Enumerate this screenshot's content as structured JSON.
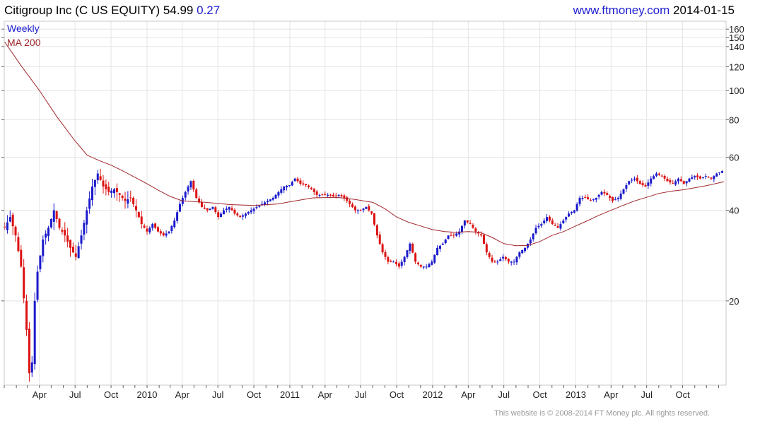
{
  "header": {
    "title": "Citigroup Inc (C US EQUITY) 54.99",
    "change": "0.27",
    "url": "www.ftmoney.com",
    "date": "2014-01-15"
  },
  "footer": {
    "copyright": "This website is © 2008-2014 FT Money plc. All rights reserved."
  },
  "colors": {
    "up": "#1a1acc",
    "down": "#dd1111",
    "ma": "#a0262b",
    "grid": "#e4e4e4",
    "accent": "#1f1fd0"
  },
  "chart_data": {
    "type": "candlestick",
    "frequency": "Weekly",
    "scale": "log",
    "ylim": [
      10.5,
      170
    ],
    "xlim": [
      "2009-01-01",
      "2014-01-20"
    ],
    "grid": true,
    "legend_position": "top-left",
    "legend": [
      {
        "name": "Weekly",
        "color": "#1a1acc"
      },
      {
        "name": "MA 200",
        "color": "#a0262b"
      }
    ],
    "y_ticks": [
      {
        "value": 160,
        "label": "160"
      },
      {
        "value": 150,
        "label": "150"
      },
      {
        "value": 140,
        "label": "140"
      },
      {
        "value": 120,
        "label": "120"
      },
      {
        "value": 100,
        "label": "100"
      },
      {
        "value": 80,
        "label": "80"
      },
      {
        "value": 60,
        "label": "60"
      },
      {
        "value": 40,
        "label": "40"
      },
      {
        "value": 20,
        "label": "20"
      }
    ],
    "x_ticks": [
      {
        "date": "2009-04-01",
        "label": "Apr"
      },
      {
        "date": "2009-07-01",
        "label": "Jul"
      },
      {
        "date": "2009-10-01",
        "label": "Oct"
      },
      {
        "date": "2010-01-01",
        "label": "2010"
      },
      {
        "date": "2010-04-01",
        "label": "Apr"
      },
      {
        "date": "2010-07-01",
        "label": "Jul"
      },
      {
        "date": "2010-10-01",
        "label": "Oct"
      },
      {
        "date": "2011-01-01",
        "label": "2011"
      },
      {
        "date": "2011-04-01",
        "label": "Apr"
      },
      {
        "date": "2011-07-01",
        "label": "Jul"
      },
      {
        "date": "2011-10-01",
        "label": "Oct"
      },
      {
        "date": "2012-01-01",
        "label": "2012"
      },
      {
        "date": "2012-04-01",
        "label": "Apr"
      },
      {
        "date": "2012-07-01",
        "label": "Jul"
      },
      {
        "date": "2012-10-01",
        "label": "Oct"
      },
      {
        "date": "2013-01-01",
        "label": "2013"
      },
      {
        "date": "2013-04-01",
        "label": "Apr"
      },
      {
        "date": "2013-07-01",
        "label": "Jul"
      },
      {
        "date": "2013-10-01",
        "label": "Oct"
      }
    ],
    "close_path": [
      [
        "2009-01-02",
        35
      ],
      [
        "2009-01-16",
        38
      ],
      [
        "2009-01-30",
        33
      ],
      [
        "2009-02-13",
        26
      ],
      [
        "2009-02-27",
        16
      ],
      [
        "2009-03-06",
        11.5
      ],
      [
        "2009-03-13",
        12.5
      ],
      [
        "2009-03-20",
        20
      ],
      [
        "2009-03-27",
        25
      ],
      [
        "2009-04-10",
        32
      ],
      [
        "2009-04-24",
        35
      ],
      [
        "2009-05-08",
        40
      ],
      [
        "2009-05-22",
        35
      ],
      [
        "2009-06-05",
        33
      ],
      [
        "2009-06-19",
        30
      ],
      [
        "2009-07-03",
        28
      ],
      [
        "2009-07-17",
        33
      ],
      [
        "2009-07-31",
        40
      ],
      [
        "2009-08-14",
        48
      ],
      [
        "2009-08-28",
        53
      ],
      [
        "2009-09-11",
        48
      ],
      [
        "2009-09-25",
        46
      ],
      [
        "2009-10-09",
        47
      ],
      [
        "2009-10-23",
        45
      ],
      [
        "2009-11-06",
        43
      ],
      [
        "2009-11-20",
        44
      ],
      [
        "2009-12-04",
        40
      ],
      [
        "2009-12-18",
        36
      ],
      [
        "2010-01-01",
        34
      ],
      [
        "2010-01-15",
        36
      ],
      [
        "2010-01-29",
        34
      ],
      [
        "2010-02-12",
        33
      ],
      [
        "2010-02-26",
        34
      ],
      [
        "2010-03-12",
        37
      ],
      [
        "2010-03-26",
        42
      ],
      [
        "2010-04-09",
        46
      ],
      [
        "2010-04-23",
        50
      ],
      [
        "2010-05-07",
        44
      ],
      [
        "2010-05-21",
        41
      ],
      [
        "2010-06-04",
        40
      ],
      [
        "2010-06-18",
        41
      ],
      [
        "2010-07-02",
        38
      ],
      [
        "2010-07-16",
        40
      ],
      [
        "2010-07-30",
        41
      ],
      [
        "2010-08-13",
        39
      ],
      [
        "2010-08-27",
        38
      ],
      [
        "2010-09-10",
        39
      ],
      [
        "2010-09-24",
        40
      ],
      [
        "2010-10-08",
        41
      ],
      [
        "2010-10-22",
        42
      ],
      [
        "2010-11-05",
        43
      ],
      [
        "2010-11-19",
        44
      ],
      [
        "2010-12-03",
        46
      ],
      [
        "2010-12-17",
        48
      ],
      [
        "2010-12-31",
        48.5
      ],
      [
        "2011-01-14",
        51
      ],
      [
        "2011-01-28",
        49
      ],
      [
        "2011-02-11",
        48.5
      ],
      [
        "2011-02-25",
        47
      ],
      [
        "2011-03-11",
        45
      ],
      [
        "2011-03-25",
        45
      ],
      [
        "2011-04-08",
        45
      ],
      [
        "2011-04-22",
        44.5
      ],
      [
        "2011-05-06",
        45
      ],
      [
        "2011-05-20",
        44
      ],
      [
        "2011-06-03",
        42
      ],
      [
        "2011-06-17",
        40
      ],
      [
        "2011-07-01",
        40
      ],
      [
        "2011-07-15",
        41
      ],
      [
        "2011-07-29",
        39
      ],
      [
        "2011-08-12",
        33
      ],
      [
        "2011-08-26",
        29
      ],
      [
        "2011-09-09",
        27
      ],
      [
        "2011-09-23",
        27
      ],
      [
        "2011-10-07",
        26
      ],
      [
        "2011-10-21",
        28
      ],
      [
        "2011-11-04",
        31
      ],
      [
        "2011-11-18",
        27
      ],
      [
        "2011-12-02",
        26
      ],
      [
        "2011-12-16",
        26
      ],
      [
        "2011-12-30",
        27
      ],
      [
        "2012-01-13",
        30
      ],
      [
        "2012-01-27",
        31
      ],
      [
        "2012-02-10",
        33
      ],
      [
        "2012-02-24",
        33
      ],
      [
        "2012-03-09",
        34
      ],
      [
        "2012-03-23",
        37
      ],
      [
        "2012-04-06",
        36
      ],
      [
        "2012-04-20",
        34
      ],
      [
        "2012-05-04",
        33
      ],
      [
        "2012-05-18",
        29
      ],
      [
        "2012-06-01",
        27
      ],
      [
        "2012-06-15",
        27
      ],
      [
        "2012-06-29",
        28
      ],
      [
        "2012-07-13",
        27
      ],
      [
        "2012-07-27",
        27
      ],
      [
        "2012-08-10",
        29
      ],
      [
        "2012-08-24",
        30
      ],
      [
        "2012-09-07",
        32
      ],
      [
        "2012-09-21",
        35
      ],
      [
        "2012-10-05",
        36
      ],
      [
        "2012-10-19",
        38
      ],
      [
        "2012-11-02",
        36
      ],
      [
        "2012-11-16",
        35
      ],
      [
        "2012-11-30",
        37
      ],
      [
        "2012-12-14",
        39
      ],
      [
        "2012-12-28",
        40
      ],
      [
        "2013-01-11",
        44
      ],
      [
        "2013-01-25",
        44
      ],
      [
        "2013-02-08",
        43
      ],
      [
        "2013-02-22",
        44
      ],
      [
        "2013-03-08",
        46
      ],
      [
        "2013-03-22",
        45
      ],
      [
        "2013-04-05",
        43
      ],
      [
        "2013-04-19",
        44
      ],
      [
        "2013-05-03",
        47
      ],
      [
        "2013-05-17",
        50
      ],
      [
        "2013-05-31",
        51
      ],
      [
        "2013-06-14",
        49
      ],
      [
        "2013-06-28",
        48
      ],
      [
        "2013-07-12",
        51
      ],
      [
        "2013-07-26",
        53
      ],
      [
        "2013-08-09",
        52
      ],
      [
        "2013-08-23",
        50
      ],
      [
        "2013-09-06",
        49
      ],
      [
        "2013-09-20",
        51
      ],
      [
        "2013-10-04",
        49
      ],
      [
        "2013-10-18",
        51
      ],
      [
        "2013-11-01",
        52
      ],
      [
        "2013-11-15",
        51
      ],
      [
        "2013-11-29",
        52
      ],
      [
        "2013-12-13",
        51
      ],
      [
        "2013-12-27",
        53
      ],
      [
        "2014-01-10",
        54
      ],
      [
        "2014-01-15",
        54.99
      ]
    ],
    "ma_200": [
      [
        "2009-01-02",
        145
      ],
      [
        "2009-02-15",
        120
      ],
      [
        "2009-04-01",
        100
      ],
      [
        "2009-05-15",
        82
      ],
      [
        "2009-07-01",
        68
      ],
      [
        "2009-08-01",
        61
      ],
      [
        "2009-09-01",
        58.5
      ],
      [
        "2009-10-01",
        56.5
      ],
      [
        "2009-11-01",
        54
      ],
      [
        "2009-12-01",
        51.5
      ],
      [
        "2010-01-01",
        49
      ],
      [
        "2010-02-01",
        46.5
      ],
      [
        "2010-03-01",
        44.5
      ],
      [
        "2010-04-01",
        43
      ],
      [
        "2010-06-01",
        42.5
      ],
      [
        "2010-08-01",
        41.8
      ],
      [
        "2010-10-01",
        41.5
      ],
      [
        "2010-12-01",
        42
      ],
      [
        "2011-01-15",
        43
      ],
      [
        "2011-03-01",
        44
      ],
      [
        "2011-05-01",
        44.2
      ],
      [
        "2011-06-15",
        43.5
      ],
      [
        "2011-08-01",
        42.5
      ],
      [
        "2011-09-01",
        40.5
      ],
      [
        "2011-10-01",
        38
      ],
      [
        "2011-11-01",
        36.5
      ],
      [
        "2011-12-01",
        35.5
      ],
      [
        "2012-01-01",
        34.5
      ],
      [
        "2012-02-01",
        34
      ],
      [
        "2012-03-01",
        33.8
      ],
      [
        "2012-04-01",
        34
      ],
      [
        "2012-05-01",
        33.8
      ],
      [
        "2012-06-01",
        32.5
      ],
      [
        "2012-07-01",
        31
      ],
      [
        "2012-08-01",
        30.5
      ],
      [
        "2012-09-01",
        30.6
      ],
      [
        "2012-10-01",
        31.5
      ],
      [
        "2012-11-01",
        33
      ],
      [
        "2012-12-01",
        34
      ],
      [
        "2013-01-01",
        35.5
      ],
      [
        "2013-02-01",
        37
      ],
      [
        "2013-03-01",
        38.5
      ],
      [
        "2013-04-01",
        40
      ],
      [
        "2013-05-01",
        41.5
      ],
      [
        "2013-06-01",
        43
      ],
      [
        "2013-07-01",
        44.2
      ],
      [
        "2013-08-01",
        45.5
      ],
      [
        "2013-09-01",
        46.3
      ],
      [
        "2013-10-01",
        46.8
      ],
      [
        "2013-11-01",
        47.5
      ],
      [
        "2013-12-01",
        48.3
      ],
      [
        "2014-01-15",
        49.8
      ]
    ]
  }
}
